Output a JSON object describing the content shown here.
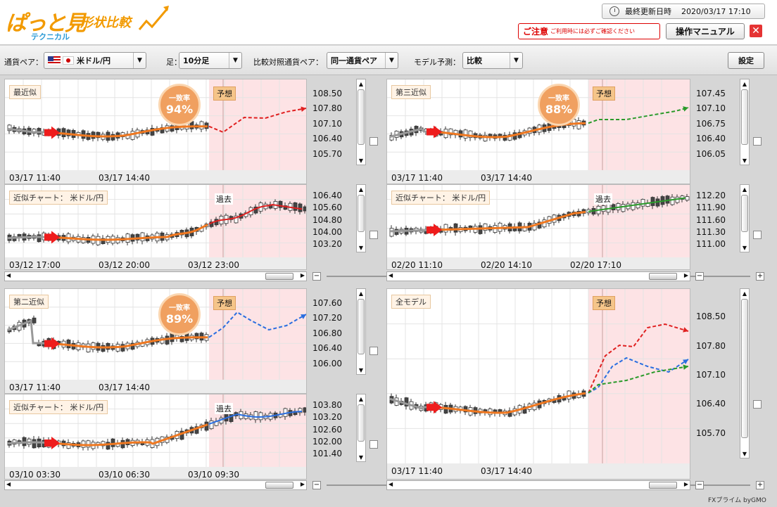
{
  "header": {
    "logo_main": "ぱっと見",
    "logo_sub": "テクニカル",
    "logo_tag": "形状比較",
    "update_label": "最終更新日時",
    "update_value": "2020/03/17 17:10",
    "caution_title": "ご注意",
    "caution_text": "ご利用時には必ずご確認ください",
    "manual_label": "操作マニュアル",
    "close_label": "✕"
  },
  "toolbar": {
    "pair_label": "通貨ペア：",
    "pair_value": "米ドル/円",
    "foot_label": "足：",
    "foot_value": "10分足",
    "compare_label": "比較対照通貨ペア：",
    "compare_value": "同一通貨ペア",
    "model_label": "モデル予測：",
    "model_value": "比較",
    "settings_label": "設定"
  },
  "panels": {
    "p1": {
      "title": "最近似",
      "badge_title": "一致率",
      "badge_value": "94%",
      "forecast_tag": "予想",
      "y_ticks": [
        "108.50",
        "107.80",
        "107.10",
        "106.40",
        "105.70"
      ],
      "x_ticks": [
        "03/17 11:40",
        "03/17 14:40"
      ],
      "forecast_color": "#e02020"
    },
    "p1b": {
      "title": "近似チャート： 米ドル/円",
      "past_tag": "過去",
      "y_ticks": [
        "106.40",
        "105.60",
        "104.80",
        "104.00",
        "103.20"
      ],
      "x_ticks": [
        "03/12 17:00",
        "03/12 20:00",
        "03/12 23:00"
      ]
    },
    "p2": {
      "title": "第三近似",
      "badge_title": "一致率",
      "badge_value": "88%",
      "forecast_tag": "予想",
      "y_ticks": [
        "107.45",
        "107.10",
        "106.75",
        "106.40",
        "106.05"
      ],
      "x_ticks": [
        "03/17 11:40",
        "03/17 14:40"
      ],
      "forecast_color": "#2a9a2a"
    },
    "p2b": {
      "title": "近似チャート： 米ドル/円",
      "past_tag": "過去",
      "y_ticks": [
        "112.20",
        "111.90",
        "111.60",
        "111.30",
        "111.00"
      ],
      "x_ticks": [
        "02/20 11:10",
        "02/20 14:10",
        "02/20 17:10"
      ]
    },
    "p3": {
      "title": "第二近似",
      "badge_title": "一致率",
      "badge_value": "89%",
      "forecast_tag": "予想",
      "y_ticks": [
        "107.60",
        "107.20",
        "106.80",
        "106.40",
        "106.00"
      ],
      "x_ticks": [
        "03/17 11:40",
        "03/17 14:40"
      ],
      "forecast_color": "#2a6ee0"
    },
    "p3b": {
      "title": "近似チャート： 米ドル/円",
      "past_tag": "過去",
      "y_ticks": [
        "103.80",
        "103.20",
        "102.60",
        "102.00",
        "101.40"
      ],
      "x_ticks": [
        "03/10 03:30",
        "03/10 06:30",
        "03/10 09:30"
      ]
    },
    "p4": {
      "title": "全モデル",
      "forecast_tag": "予想",
      "y_ticks": [
        "108.50",
        "107.80",
        "107.10",
        "106.40",
        "105.70"
      ],
      "x_ticks": [
        "03/17 11:40",
        "03/17 14:40"
      ]
    }
  },
  "footer": {
    "brand": "FXプライム byGMO"
  },
  "colors": {
    "fit_line": "#f07820",
    "forecast_bg": "#fde3e5",
    "arrow": "#ee1c1c",
    "green": "#2a9a2a",
    "blue": "#2a6ee0",
    "red": "#e02020"
  }
}
